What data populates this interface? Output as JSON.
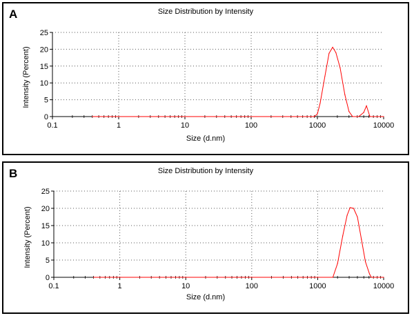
{
  "chart_data": [
    {
      "panel": "A",
      "type": "line",
      "title": "Size Distribution by Intensity",
      "xlabel": "Size (d.nm)",
      "ylabel": "Intensity (Percent)",
      "xscale": "log",
      "xlim": [
        0.1,
        10000
      ],
      "ylim": [
        0,
        25
      ],
      "xticks": [
        "0.1",
        "1",
        "10",
        "100",
        "1000",
        "10000"
      ],
      "yticks": [
        "0",
        "5",
        "10",
        "15",
        "20",
        "25"
      ],
      "grid": true,
      "series": [
        {
          "color": "#ff0000",
          "x": [
            0.4,
            900,
            1000,
            1100,
            1300,
            1500,
            1700,
            1900,
            2200,
            2600,
            3000,
            3400,
            4200,
            5000,
            5500,
            6200,
            10000
          ],
          "y": [
            0,
            0,
            0.8,
            4,
            12,
            18.8,
            20.6,
            19,
            14.5,
            6.5,
            1.5,
            0,
            0,
            1.2,
            3.2,
            0,
            0
          ]
        }
      ]
    },
    {
      "panel": "B",
      "type": "line",
      "title": "Size Distribution by Intensity",
      "xlabel": "Size (d.nm)",
      "ylabel": "Intensity (Percent)",
      "xscale": "log",
      "xlim": [
        0.1,
        10000
      ],
      "ylim": [
        0,
        25
      ],
      "xticks": [
        "0.1",
        "1",
        "10",
        "100",
        "1000",
        "10000"
      ],
      "yticks": [
        "0",
        "5",
        "10",
        "15",
        "20",
        "25"
      ],
      "grid": true,
      "series": [
        {
          "color": "#ff0000",
          "x": [
            0.4,
            1700,
            2000,
            2400,
            2800,
            3100,
            3500,
            4000,
            4600,
            5300,
            6100,
            6500,
            10000
          ],
          "y": [
            0,
            0,
            4,
            12,
            18,
            20.2,
            20,
            17.5,
            11,
            4.5,
            1,
            0,
            0
          ]
        }
      ]
    }
  ]
}
